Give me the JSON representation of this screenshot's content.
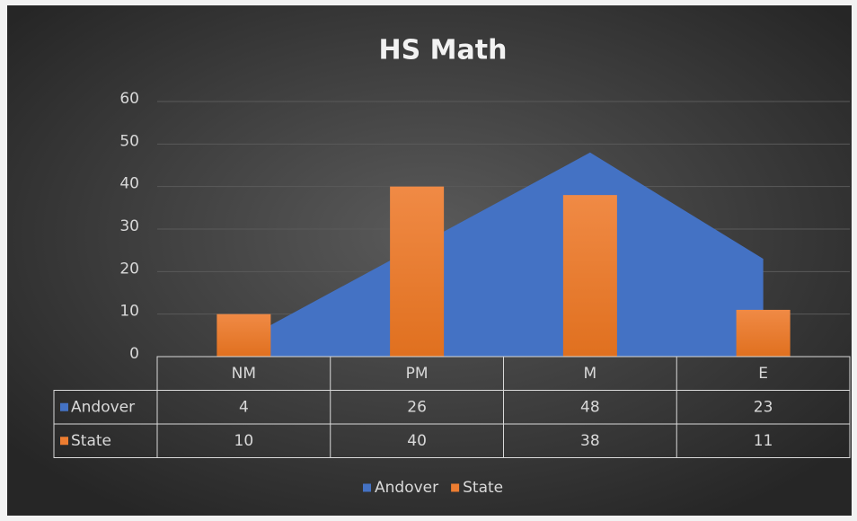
{
  "chart_data": {
    "type": "bar",
    "title": "HS Math",
    "categories": [
      "NM",
      "PM",
      "M",
      "E"
    ],
    "series": [
      {
        "name": "Andover",
        "type": "area",
        "color": "#4472c4",
        "values": [
          4,
          26,
          48,
          23
        ]
      },
      {
        "name": "State",
        "type": "bar",
        "color": "#ed7d31",
        "values": [
          10,
          40,
          38,
          11
        ]
      }
    ],
    "ylim": [
      0,
      60
    ],
    "yticks": [
      0,
      10,
      20,
      30,
      40,
      50,
      60
    ],
    "grid": true,
    "legend": "bottom",
    "data_table": true
  }
}
